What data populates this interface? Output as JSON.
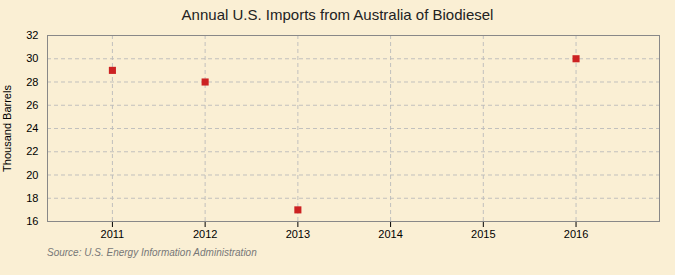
{
  "chart_data": {
    "type": "scatter",
    "title": "Annual U.S. Imports from Australia of Biodiesel",
    "ylabel": "Thousand Barrels",
    "caption": "Source: U.S. Energy Information Administration",
    "x": [
      2011,
      2012,
      2013,
      2016
    ],
    "values": [
      29,
      28,
      17,
      30
    ],
    "color": "#cc2222",
    "marker": "square",
    "xlim": [
      2010.3,
      2016.9
    ],
    "ylim": [
      16,
      32
    ],
    "xticks": [
      2011,
      2012,
      2013,
      2014,
      2015,
      2016
    ],
    "yticks": [
      16,
      18,
      20,
      22,
      24,
      26,
      28,
      30,
      32
    ],
    "grid": true
  }
}
